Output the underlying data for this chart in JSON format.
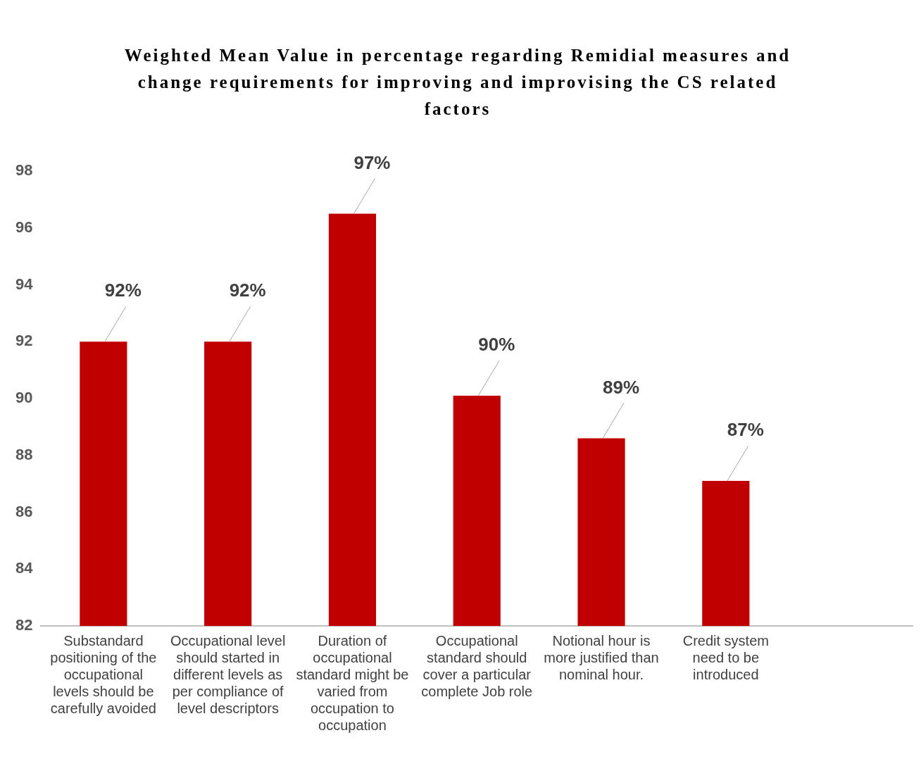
{
  "chart_data": {
    "type": "bar",
    "title": "Weighted Mean Value in percentage regarding Remidial measures and change requirements for improving and improvising the CS related factors",
    "categories": [
      "Substandard positioning of the occupational levels should be carefully avoided",
      "Occupational level should started in different levels as per compliance of level descriptors",
      "Duration of occupational standard might be varied from occupation to occupation",
      "Occupational standard should cover a particular complete Job role",
      "Notional hour is more justified than nominal hour.",
      "Credit system need to be introduced",
      null
    ],
    "values": [
      92.0,
      92.0,
      96.5,
      90.1,
      88.6,
      87.1,
      null
    ],
    "value_labels": [
      "92%",
      "92%",
      "97%",
      "90%",
      "89%",
      "87%",
      null
    ],
    "color": "#c00000",
    "ylim": [
      82,
      98
    ],
    "yticks": [
      82,
      84,
      86,
      88,
      90,
      92,
      94,
      96,
      98
    ],
    "grid": false,
    "legend": false
  }
}
